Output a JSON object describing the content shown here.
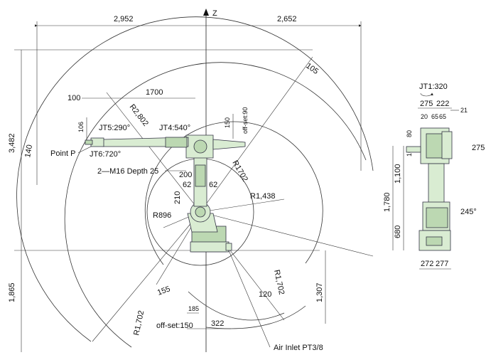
{
  "axis": {
    "z_label": "Z"
  },
  "dims": {
    "left_width": "2,952",
    "right_width": "2,652",
    "height_upper": "3,482",
    "height_lower": "1,865",
    "arm_1700": "1700",
    "offset_100": "100",
    "r2802": "R2,802",
    "dim_106": "106",
    "dim_150": "150",
    "offset_90": "off-set:90",
    "r1702_upper": "R1702",
    "dim_200": "200",
    "dim_62_left": "62",
    "dim_62_right": "62",
    "dim_210": "210",
    "r1438": "R1,438",
    "r896": "R896",
    "angle_140": "140",
    "angle_105": "105",
    "angle_155": "155",
    "angle_120": "120",
    "r1702_lower_left": "R1,702",
    "r1702_lower_right": "R1,702",
    "dim_1307": "1,307",
    "dim_185": "185",
    "offset_150": "off-set:150",
    "dim_322": "322"
  },
  "labels": {
    "jt5": "JT5:290°",
    "jt6": "JT6:720°",
    "jt4": "JT4:540°",
    "point_p": "Point P",
    "m16": "2—M16 Depth 25",
    "air_inlet": "Air Inlet  PT3/8"
  },
  "side_view": {
    "jt1": "JT1:320",
    "dim_275": "275",
    "dim_222": "222",
    "dim_20": "20",
    "dim_65a": "65",
    "dim_65b": "65",
    "dim_21": "21",
    "dim_80": "80",
    "dim_10": "10",
    "dim_1100": "1,100",
    "dim_1780": "1,780",
    "dim_680": "680",
    "dim_275_right": "275",
    "angle_245": "245°",
    "dim_272": "272",
    "dim_277": "277"
  }
}
